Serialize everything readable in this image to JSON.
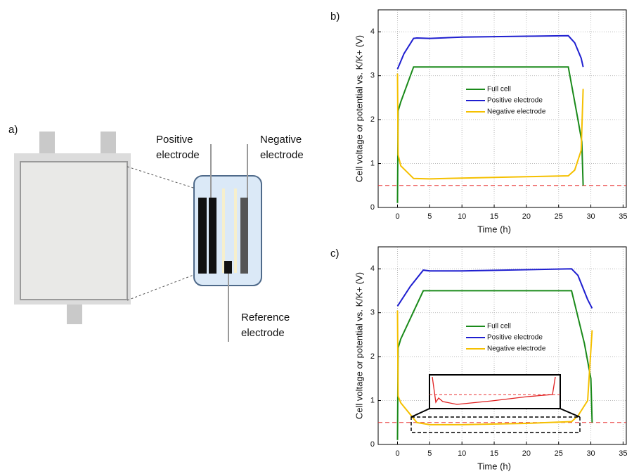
{
  "panel_a": {
    "label": "a)",
    "positive_label": [
      "Positive",
      "electrode"
    ],
    "negative_label": [
      "Negative",
      "electrode"
    ],
    "reference_label": [
      "Reference",
      "electrode"
    ]
  },
  "chart_data": [
    {
      "type": "line",
      "panel_label": "b)",
      "x_label": "Time (h)",
      "y_label": "Cell voltage or potential vs. K/K+ (V)",
      "xlim": [
        -3,
        35.5
      ],
      "ylim": [
        0,
        4.5
      ],
      "xticks": [
        0,
        5,
        10,
        15,
        20,
        25,
        30,
        35
      ],
      "yticks": [
        0,
        1,
        2,
        3,
        4
      ],
      "grid": true,
      "reference_line": {
        "value": 0.5,
        "color": "#e83030"
      },
      "series": [
        {
          "name": "Full cell",
          "color": "#1a8a1a",
          "x": [
            0,
            0.1,
            0.5,
            2.5,
            26.5,
            28,
            28.6,
            28.8
          ],
          "values": [
            0.1,
            2.2,
            2.4,
            3.2,
            3.2,
            2.0,
            1.5,
            0.5
          ]
        },
        {
          "name": "Positive electrode",
          "color": "#1f1fd0",
          "x": [
            0,
            1,
            2.5,
            3,
            5,
            10,
            20,
            26.5,
            27.5,
            28.5,
            28.8
          ],
          "values": [
            3.15,
            3.5,
            3.85,
            3.86,
            3.85,
            3.88,
            3.9,
            3.91,
            3.75,
            3.4,
            3.2
          ]
        },
        {
          "name": "Negative electrode",
          "color": "#f5c000",
          "x": [
            0,
            0.1,
            0.5,
            2.5,
            5,
            10,
            20,
            26.5,
            27.5,
            28.5,
            28.8
          ],
          "values": [
            3.05,
            1.2,
            0.95,
            0.66,
            0.65,
            0.67,
            0.7,
            0.72,
            0.85,
            1.3,
            2.7
          ]
        }
      ]
    },
    {
      "type": "line",
      "panel_label": "c)",
      "x_label": "Time (h)",
      "y_label": "Cell voltage or potential vs. K/K+ (V)",
      "xlim": [
        -3,
        35.5
      ],
      "ylim": [
        0,
        4.5
      ],
      "xticks": [
        0,
        5,
        10,
        15,
        20,
        25,
        30,
        35
      ],
      "yticks": [
        0,
        1,
        2,
        3,
        4
      ],
      "grid": true,
      "reference_line": {
        "value": 0.5,
        "color": "#e83030"
      },
      "series": [
        {
          "name": "Full cell",
          "color": "#1a8a1a",
          "x": [
            0,
            0.1,
            0.5,
            4,
            27,
            29,
            30,
            30.2
          ],
          "values": [
            0.1,
            2.2,
            2.4,
            3.5,
            3.5,
            2.3,
            1.5,
            0.5
          ]
        },
        {
          "name": "Positive electrode",
          "color": "#1f1fd0",
          "x": [
            0,
            2,
            4,
            5,
            10,
            20,
            27,
            28,
            29.5,
            30.2
          ],
          "values": [
            3.15,
            3.6,
            3.97,
            3.95,
            3.95,
            3.98,
            4.0,
            3.85,
            3.3,
            3.1
          ]
        },
        {
          "name": "Negative electrode",
          "color": "#f5c000",
          "x": [
            0,
            0.1,
            0.5,
            3,
            5,
            10,
            20,
            27,
            28,
            29.5,
            30.2
          ],
          "values": [
            3.05,
            1.1,
            0.95,
            0.5,
            0.45,
            0.45,
            0.48,
            0.52,
            0.65,
            1.0,
            2.6
          ]
        }
      ]
    }
  ]
}
